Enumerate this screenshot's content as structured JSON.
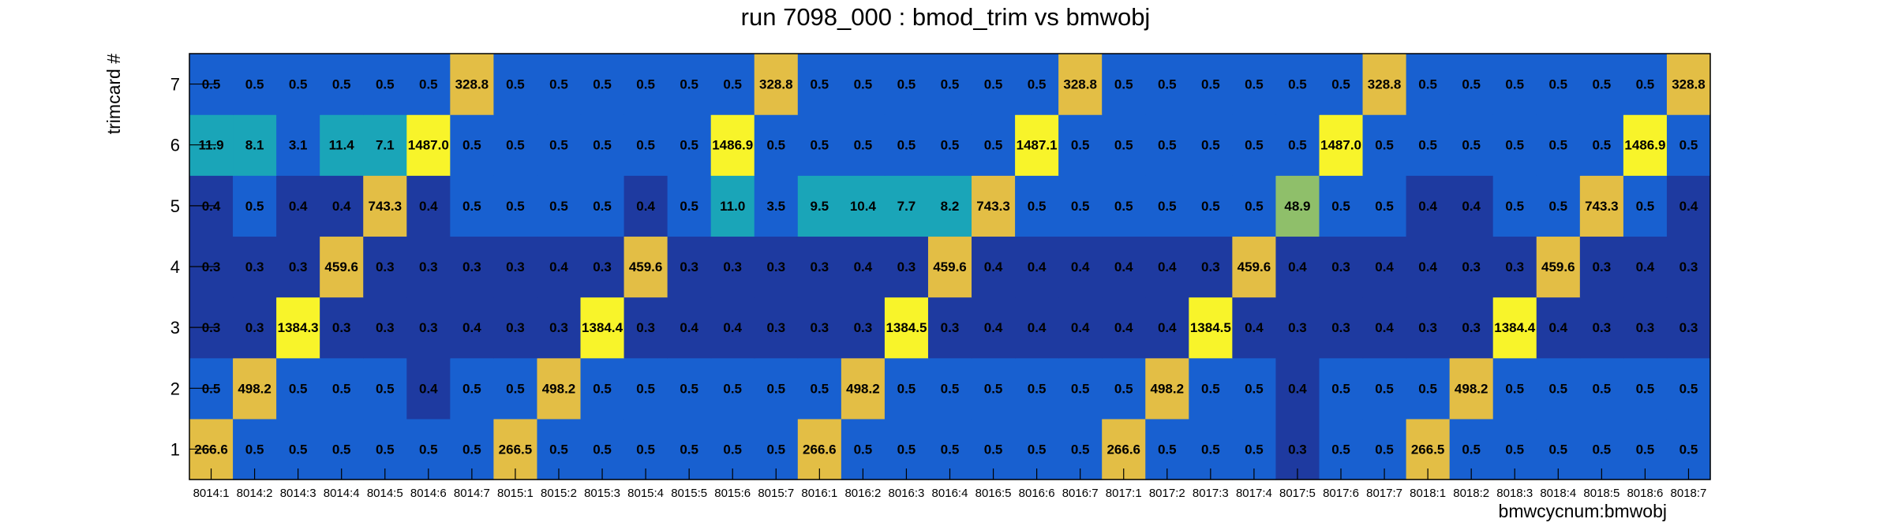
{
  "chart_data": {
    "type": "heatmap",
    "title": "run 7098_000 : bmod_trim vs bmwobj",
    "xlabel": "bmwcycnum:bmwobj",
    "ylabel": "trimcard #",
    "x": [
      "8014:1",
      "8014:2",
      "8014:3",
      "8014:4",
      "8014:5",
      "8014:6",
      "8014:7",
      "8015:1",
      "8015:2",
      "8015:3",
      "8015:4",
      "8015:5",
      "8015:6",
      "8015:7",
      "8016:1",
      "8016:2",
      "8016:3",
      "8016:4",
      "8016:5",
      "8016:6",
      "8016:7",
      "8017:1",
      "8017:2",
      "8017:3",
      "8017:4",
      "8017:5",
      "8017:6",
      "8017:7",
      "8018:1",
      "8018:2",
      "8018:3",
      "8018:4",
      "8018:5",
      "8018:6",
      "8018:7"
    ],
    "y": [
      "1",
      "2",
      "3",
      "4",
      "5",
      "6",
      "7"
    ],
    "rows": [
      {
        "y": "1",
        "values": [
          "266.6",
          "0.5",
          "0.5",
          "0.5",
          "0.5",
          "0.5",
          "0.5",
          "266.5",
          "0.5",
          "0.5",
          "0.5",
          "0.5",
          "0.5",
          "0.5",
          "266.6",
          "0.5",
          "0.5",
          "0.5",
          "0.5",
          "0.5",
          "0.5",
          "266.6",
          "0.5",
          "0.5",
          "0.5",
          "0.3",
          "0.5",
          "0.5",
          "266.5",
          "0.5",
          "0.5",
          "0.5",
          "0.5",
          "0.5",
          "0.5"
        ]
      },
      {
        "y": "2",
        "values": [
          "0.5",
          "498.2",
          "0.5",
          "0.5",
          "0.5",
          "0.4",
          "0.5",
          "0.5",
          "498.2",
          "0.5",
          "0.5",
          "0.5",
          "0.5",
          "0.5",
          "0.5",
          "498.2",
          "0.5",
          "0.5",
          "0.5",
          "0.5",
          "0.5",
          "0.5",
          "498.2",
          "0.5",
          "0.5",
          "0.4",
          "0.5",
          "0.5",
          "0.5",
          "498.2",
          "0.5",
          "0.5",
          "0.5",
          "0.5",
          "0.5"
        ]
      },
      {
        "y": "3",
        "values": [
          "0.3",
          "0.3",
          "1384.3",
          "0.3",
          "0.3",
          "0.3",
          "0.4",
          "0.3",
          "0.3",
          "1384.4",
          "0.3",
          "0.4",
          "0.4",
          "0.3",
          "0.3",
          "0.3",
          "1384.5",
          "0.3",
          "0.4",
          "0.4",
          "0.4",
          "0.4",
          "0.4",
          "1384.5",
          "0.4",
          "0.3",
          "0.3",
          "0.4",
          "0.3",
          "0.3",
          "1384.4",
          "0.4",
          "0.3",
          "0.3",
          "0.3"
        ]
      },
      {
        "y": "4",
        "values": [
          "0.3",
          "0.3",
          "0.3",
          "459.6",
          "0.3",
          "0.3",
          "0.3",
          "0.3",
          "0.4",
          "0.3",
          "459.6",
          "0.3",
          "0.3",
          "0.3",
          "0.3",
          "0.4",
          "0.3",
          "459.6",
          "0.4",
          "0.4",
          "0.4",
          "0.4",
          "0.4",
          "0.3",
          "459.6",
          "0.4",
          "0.3",
          "0.4",
          "0.4",
          "0.3",
          "0.3",
          "459.6",
          "0.3",
          "0.4",
          "0.3"
        ]
      },
      {
        "y": "5",
        "values": [
          "0.4",
          "0.5",
          "0.4",
          "0.4",
          "743.3",
          "0.4",
          "0.5",
          "0.5",
          "0.5",
          "0.5",
          "0.4",
          "0.5",
          "11.0",
          "3.5",
          "9.5",
          "10.4",
          "7.7",
          "8.2",
          "743.3",
          "0.5",
          "0.5",
          "0.5",
          "0.5",
          "0.5",
          "0.5",
          "48.9",
          "0.5",
          "0.5",
          "0.4",
          "0.4",
          "0.5",
          "0.5",
          "743.3",
          "0.5",
          "0.4"
        ]
      },
      {
        "y": "6",
        "values": [
          "11.9",
          "8.1",
          "3.1",
          "11.4",
          "7.1",
          "1487.0",
          "0.5",
          "0.5",
          "0.5",
          "0.5",
          "0.5",
          "0.5",
          "1486.9",
          "0.5",
          "0.5",
          "0.5",
          "0.5",
          "0.5",
          "0.5",
          "1487.1",
          "0.5",
          "0.5",
          "0.5",
          "0.5",
          "0.5",
          "0.5",
          "1487.0",
          "0.5",
          "0.5",
          "0.5",
          "0.5",
          "0.5",
          "0.5",
          "1486.9",
          "0.5"
        ]
      },
      {
        "y": "7",
        "values": [
          "0.5",
          "0.5",
          "0.5",
          "0.5",
          "0.5",
          "0.5",
          "328.8",
          "0.5",
          "0.5",
          "0.5",
          "0.5",
          "0.5",
          "0.5",
          "328.8",
          "0.5",
          "0.5",
          "0.5",
          "0.5",
          "0.5",
          "0.5",
          "328.8",
          "0.5",
          "0.5",
          "0.5",
          "0.5",
          "0.5",
          "0.5",
          "328.8",
          "0.5",
          "0.5",
          "0.5",
          "0.5",
          "0.5",
          "0.5",
          "328.8"
        ]
      }
    ],
    "colors": {
      "low": "#1e3aa0",
      "mid": "#1860d0",
      "teal": "#1aa5b8",
      "green": "#8fbf6a",
      "gold": "#e3be45",
      "yellow": "#f8f42a"
    }
  }
}
